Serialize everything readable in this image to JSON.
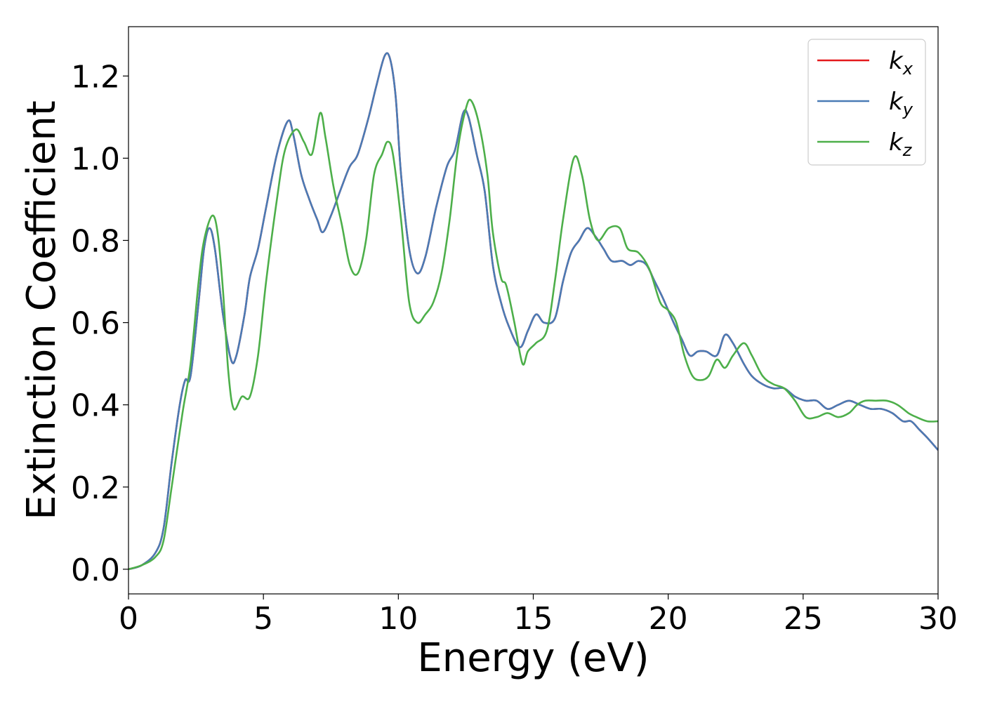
{
  "chart_data": {
    "type": "line",
    "title": "",
    "xlabel": "Energy (eV)",
    "ylabel": "Extinction Coefficient",
    "xlim": [
      0,
      30
    ],
    "ylim": [
      -0.06,
      1.32
    ],
    "xticks": [
      0,
      5,
      10,
      15,
      20,
      25,
      30
    ],
    "xtick_labels": [
      "0",
      "5",
      "10",
      "15",
      "20",
      "25",
      "30"
    ],
    "yticks": [
      0.0,
      0.2,
      0.4,
      0.6,
      0.8,
      1.0,
      1.2
    ],
    "ytick_labels": [
      "0.0",
      "0.2",
      "0.4",
      "0.6",
      "0.8",
      "1.0",
      "1.2"
    ],
    "grid": false,
    "legend_position": "top-right",
    "series": [
      {
        "name": "k",
        "subscript": "x",
        "color": "#e41a1c",
        "points": [
          [
            0,
            0.0
          ],
          [
            0.5,
            0.01
          ],
          [
            1,
            0.04
          ],
          [
            1.3,
            0.1
          ],
          [
            1.6,
            0.26
          ],
          [
            1.9,
            0.4
          ],
          [
            2.1,
            0.46
          ],
          [
            2.3,
            0.47
          ],
          [
            2.6,
            0.65
          ],
          [
            2.8,
            0.78
          ],
          [
            3.0,
            0.83
          ],
          [
            3.2,
            0.78
          ],
          [
            3.5,
            0.62
          ],
          [
            3.8,
            0.51
          ],
          [
            4.0,
            0.52
          ],
          [
            4.3,
            0.62
          ],
          [
            4.5,
            0.71
          ],
          [
            4.8,
            0.78
          ],
          [
            5.1,
            0.88
          ],
          [
            5.5,
            1.01
          ],
          [
            5.9,
            1.09
          ],
          [
            6.1,
            1.06
          ],
          [
            6.4,
            0.96
          ],
          [
            6.7,
            0.9
          ],
          [
            7.0,
            0.85
          ],
          [
            7.2,
            0.82
          ],
          [
            7.5,
            0.86
          ],
          [
            7.9,
            0.93
          ],
          [
            8.2,
            0.98
          ],
          [
            8.5,
            1.01
          ],
          [
            8.9,
            1.1
          ],
          [
            9.2,
            1.18
          ],
          [
            9.5,
            1.25
          ],
          [
            9.7,
            1.24
          ],
          [
            9.9,
            1.15
          ],
          [
            10.1,
            0.96
          ],
          [
            10.4,
            0.78
          ],
          [
            10.7,
            0.72
          ],
          [
            11.0,
            0.76
          ],
          [
            11.4,
            0.88
          ],
          [
            11.8,
            0.98
          ],
          [
            12.1,
            1.02
          ],
          [
            12.4,
            1.11
          ],
          [
            12.6,
            1.1
          ],
          [
            12.9,
            1.01
          ],
          [
            13.2,
            0.92
          ],
          [
            13.5,
            0.74
          ],
          [
            13.8,
            0.65
          ],
          [
            14.1,
            0.59
          ],
          [
            14.5,
            0.54
          ],
          [
            14.8,
            0.58
          ],
          [
            15.1,
            0.62
          ],
          [
            15.4,
            0.6
          ],
          [
            15.8,
            0.61
          ],
          [
            16.1,
            0.7
          ],
          [
            16.4,
            0.77
          ],
          [
            16.7,
            0.8
          ],
          [
            17.0,
            0.83
          ],
          [
            17.3,
            0.81
          ],
          [
            17.6,
            0.78
          ],
          [
            17.9,
            0.75
          ],
          [
            18.3,
            0.75
          ],
          [
            18.6,
            0.74
          ],
          [
            18.9,
            0.75
          ],
          [
            19.2,
            0.74
          ],
          [
            19.5,
            0.7
          ],
          [
            19.8,
            0.66
          ],
          [
            20.2,
            0.6
          ],
          [
            20.5,
            0.56
          ],
          [
            20.8,
            0.52
          ],
          [
            21.1,
            0.53
          ],
          [
            21.4,
            0.53
          ],
          [
            21.8,
            0.52
          ],
          [
            22.1,
            0.57
          ],
          [
            22.4,
            0.55
          ],
          [
            22.8,
            0.5
          ],
          [
            23.1,
            0.47
          ],
          [
            23.5,
            0.45
          ],
          [
            23.9,
            0.44
          ],
          [
            24.3,
            0.44
          ],
          [
            24.7,
            0.42
          ],
          [
            25.1,
            0.41
          ],
          [
            25.5,
            0.41
          ],
          [
            25.9,
            0.39
          ],
          [
            26.3,
            0.4
          ],
          [
            26.7,
            0.41
          ],
          [
            27.1,
            0.4
          ],
          [
            27.5,
            0.39
          ],
          [
            27.9,
            0.39
          ],
          [
            28.3,
            0.38
          ],
          [
            28.7,
            0.36
          ],
          [
            29.0,
            0.36
          ],
          [
            29.3,
            0.34
          ],
          [
            29.6,
            0.32
          ],
          [
            30.0,
            0.29
          ]
        ]
      },
      {
        "name": "k",
        "subscript": "y",
        "color": "#4a7bb5",
        "points": [
          [
            0,
            0.0
          ],
          [
            0.5,
            0.01
          ],
          [
            1,
            0.04
          ],
          [
            1.3,
            0.1
          ],
          [
            1.6,
            0.26
          ],
          [
            1.9,
            0.4
          ],
          [
            2.1,
            0.46
          ],
          [
            2.3,
            0.47
          ],
          [
            2.6,
            0.65
          ],
          [
            2.8,
            0.78
          ],
          [
            3.0,
            0.83
          ],
          [
            3.2,
            0.78
          ],
          [
            3.5,
            0.62
          ],
          [
            3.8,
            0.51
          ],
          [
            4.0,
            0.52
          ],
          [
            4.3,
            0.62
          ],
          [
            4.5,
            0.71
          ],
          [
            4.8,
            0.78
          ],
          [
            5.1,
            0.88
          ],
          [
            5.5,
            1.01
          ],
          [
            5.9,
            1.09
          ],
          [
            6.1,
            1.06
          ],
          [
            6.4,
            0.96
          ],
          [
            6.7,
            0.9
          ],
          [
            7.0,
            0.85
          ],
          [
            7.2,
            0.82
          ],
          [
            7.5,
            0.86
          ],
          [
            7.9,
            0.93
          ],
          [
            8.2,
            0.98
          ],
          [
            8.5,
            1.01
          ],
          [
            8.9,
            1.1
          ],
          [
            9.2,
            1.18
          ],
          [
            9.5,
            1.25
          ],
          [
            9.7,
            1.24
          ],
          [
            9.9,
            1.15
          ],
          [
            10.1,
            0.96
          ],
          [
            10.4,
            0.78
          ],
          [
            10.7,
            0.72
          ],
          [
            11.0,
            0.76
          ],
          [
            11.4,
            0.88
          ],
          [
            11.8,
            0.98
          ],
          [
            12.1,
            1.02
          ],
          [
            12.4,
            1.11
          ],
          [
            12.6,
            1.1
          ],
          [
            12.9,
            1.01
          ],
          [
            13.2,
            0.92
          ],
          [
            13.5,
            0.74
          ],
          [
            13.8,
            0.65
          ],
          [
            14.1,
            0.59
          ],
          [
            14.5,
            0.54
          ],
          [
            14.8,
            0.58
          ],
          [
            15.1,
            0.62
          ],
          [
            15.4,
            0.6
          ],
          [
            15.8,
            0.61
          ],
          [
            16.1,
            0.7
          ],
          [
            16.4,
            0.77
          ],
          [
            16.7,
            0.8
          ],
          [
            17.0,
            0.83
          ],
          [
            17.3,
            0.81
          ],
          [
            17.6,
            0.78
          ],
          [
            17.9,
            0.75
          ],
          [
            18.3,
            0.75
          ],
          [
            18.6,
            0.74
          ],
          [
            18.9,
            0.75
          ],
          [
            19.2,
            0.74
          ],
          [
            19.5,
            0.7
          ],
          [
            19.8,
            0.66
          ],
          [
            20.2,
            0.6
          ],
          [
            20.5,
            0.56
          ],
          [
            20.8,
            0.52
          ],
          [
            21.1,
            0.53
          ],
          [
            21.4,
            0.53
          ],
          [
            21.8,
            0.52
          ],
          [
            22.1,
            0.57
          ],
          [
            22.4,
            0.55
          ],
          [
            22.8,
            0.5
          ],
          [
            23.1,
            0.47
          ],
          [
            23.5,
            0.45
          ],
          [
            23.9,
            0.44
          ],
          [
            24.3,
            0.44
          ],
          [
            24.7,
            0.42
          ],
          [
            25.1,
            0.41
          ],
          [
            25.5,
            0.41
          ],
          [
            25.9,
            0.39
          ],
          [
            26.3,
            0.4
          ],
          [
            26.7,
            0.41
          ],
          [
            27.1,
            0.4
          ],
          [
            27.5,
            0.39
          ],
          [
            27.9,
            0.39
          ],
          [
            28.3,
            0.38
          ],
          [
            28.7,
            0.36
          ],
          [
            29.0,
            0.36
          ],
          [
            29.3,
            0.34
          ],
          [
            29.6,
            0.32
          ],
          [
            30.0,
            0.29
          ]
        ]
      },
      {
        "name": "k",
        "subscript": "z",
        "color": "#4daf4a",
        "points": [
          [
            0,
            0.0
          ],
          [
            0.5,
            0.01
          ],
          [
            1,
            0.03
          ],
          [
            1.3,
            0.07
          ],
          [
            1.6,
            0.2
          ],
          [
            2.0,
            0.38
          ],
          [
            2.3,
            0.5
          ],
          [
            2.6,
            0.7
          ],
          [
            2.8,
            0.8
          ],
          [
            3.1,
            0.86
          ],
          [
            3.3,
            0.82
          ],
          [
            3.5,
            0.68
          ],
          [
            3.7,
            0.48
          ],
          [
            3.9,
            0.39
          ],
          [
            4.2,
            0.42
          ],
          [
            4.5,
            0.42
          ],
          [
            4.8,
            0.52
          ],
          [
            5.1,
            0.7
          ],
          [
            5.5,
            0.9
          ],
          [
            5.8,
            1.02
          ],
          [
            6.2,
            1.07
          ],
          [
            6.5,
            1.04
          ],
          [
            6.8,
            1.01
          ],
          [
            7.1,
            1.11
          ],
          [
            7.3,
            1.05
          ],
          [
            7.6,
            0.93
          ],
          [
            7.9,
            0.84
          ],
          [
            8.2,
            0.74
          ],
          [
            8.5,
            0.72
          ],
          [
            8.8,
            0.8
          ],
          [
            9.1,
            0.96
          ],
          [
            9.4,
            1.01
          ],
          [
            9.6,
            1.04
          ],
          [
            9.8,
            1.01
          ],
          [
            10.1,
            0.85
          ],
          [
            10.4,
            0.65
          ],
          [
            10.7,
            0.6
          ],
          [
            11.0,
            0.62
          ],
          [
            11.3,
            0.65
          ],
          [
            11.6,
            0.72
          ],
          [
            11.9,
            0.85
          ],
          [
            12.2,
            1.02
          ],
          [
            12.5,
            1.12
          ],
          [
            12.7,
            1.14
          ],
          [
            13.0,
            1.08
          ],
          [
            13.3,
            0.96
          ],
          [
            13.5,
            0.82
          ],
          [
            13.8,
            0.71
          ],
          [
            14.0,
            0.69
          ],
          [
            14.3,
            0.6
          ],
          [
            14.6,
            0.5
          ],
          [
            14.8,
            0.53
          ],
          [
            15.1,
            0.55
          ],
          [
            15.5,
            0.58
          ],
          [
            15.8,
            0.7
          ],
          [
            16.1,
            0.85
          ],
          [
            16.5,
            1.0
          ],
          [
            16.8,
            0.96
          ],
          [
            17.1,
            0.85
          ],
          [
            17.4,
            0.8
          ],
          [
            17.8,
            0.83
          ],
          [
            18.2,
            0.83
          ],
          [
            18.5,
            0.78
          ],
          [
            18.9,
            0.77
          ],
          [
            19.3,
            0.73
          ],
          [
            19.7,
            0.65
          ],
          [
            20.0,
            0.63
          ],
          [
            20.3,
            0.6
          ],
          [
            20.6,
            0.52
          ],
          [
            20.9,
            0.47
          ],
          [
            21.2,
            0.46
          ],
          [
            21.5,
            0.47
          ],
          [
            21.8,
            0.51
          ],
          [
            22.1,
            0.49
          ],
          [
            22.4,
            0.52
          ],
          [
            22.8,
            0.55
          ],
          [
            23.1,
            0.52
          ],
          [
            23.5,
            0.47
          ],
          [
            23.9,
            0.45
          ],
          [
            24.3,
            0.44
          ],
          [
            24.7,
            0.41
          ],
          [
            25.1,
            0.37
          ],
          [
            25.5,
            0.37
          ],
          [
            25.9,
            0.38
          ],
          [
            26.3,
            0.37
          ],
          [
            26.7,
            0.38
          ],
          [
            27.0,
            0.4
          ],
          [
            27.3,
            0.41
          ],
          [
            27.7,
            0.41
          ],
          [
            28.1,
            0.41
          ],
          [
            28.5,
            0.4
          ],
          [
            28.9,
            0.38
          ],
          [
            29.2,
            0.37
          ],
          [
            29.6,
            0.36
          ],
          [
            30.0,
            0.36
          ]
        ]
      }
    ]
  }
}
